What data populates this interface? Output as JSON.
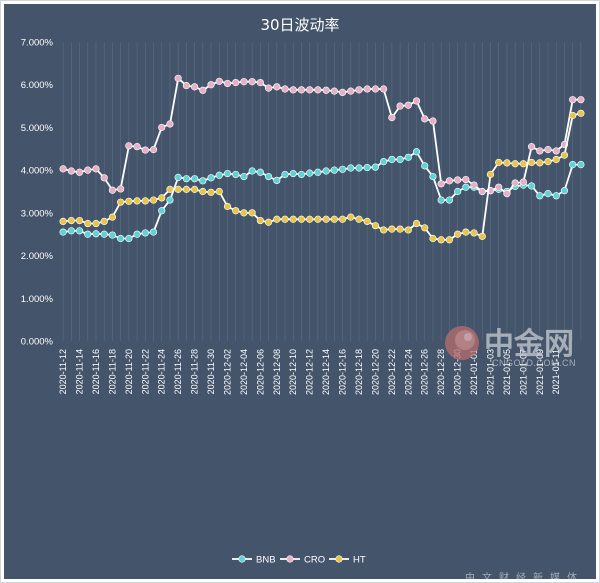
{
  "chart_data": {
    "type": "line",
    "title": "30日波动率",
    "xlabel": "",
    "ylabel": "",
    "ylim": [
      0,
      0.07
    ],
    "y_ticks": [
      "0.000%",
      "1.000%",
      "2.000%",
      "3.000%",
      "4.000%",
      "5.000%",
      "6.000%",
      "7.000%"
    ],
    "grid": "vertical-only",
    "legend": "bottom",
    "x_tick_labels": [
      "2020-11-12",
      "2020-11-14",
      "2020-11-16",
      "2020-11-18",
      "2020-11-20",
      "2020-11-22",
      "2020-11-24",
      "2020-11-26",
      "2020-11-28",
      "2020-11-30",
      "2020-12-02",
      "2020-12-04",
      "2020-12-06",
      "2020-12-08",
      "2020-12-10",
      "2020-12-12",
      "2020-12-14",
      "2020-12-16",
      "2020-12-18",
      "2020-12-20",
      "2020-12-22",
      "2020-12-24",
      "2020-12-26",
      "2020-12-28",
      "2020-12-30",
      "2021-01-01",
      "2021-01-03",
      "2021-01-05",
      "2021-01-07",
      "2021-01-09",
      "2021-01-11"
    ],
    "x_start": "2020-11-12",
    "series": [
      {
        "name": "BNB",
        "color": "#5ed3d6",
        "values": [
          0.0255,
          0.0258,
          0.0258,
          0.025,
          0.0251,
          0.025,
          0.0248,
          0.024,
          0.024,
          0.025,
          0.0253,
          0.0255,
          0.0305,
          0.033,
          0.0383,
          0.038,
          0.038,
          0.0375,
          0.0382,
          0.0388,
          0.0392,
          0.039,
          0.0385,
          0.0398,
          0.0395,
          0.0385,
          0.0376,
          0.039,
          0.0392,
          0.039,
          0.0393,
          0.0395,
          0.0398,
          0.04,
          0.0402,
          0.0405,
          0.0405,
          0.0406,
          0.0407,
          0.042,
          0.0425,
          0.0425,
          0.043,
          0.0443,
          0.041,
          0.0385,
          0.033,
          0.033,
          0.035,
          0.036,
          0.036,
          0.035,
          0.0352,
          0.0355,
          0.035,
          0.0362,
          0.0365,
          0.0363,
          0.034,
          0.0345,
          0.034,
          0.0352,
          0.0413,
          0.0413
        ]
      },
      {
        "name": "CRO",
        "color": "#e6b0c6",
        "values": [
          0.0403,
          0.0398,
          0.0395,
          0.04,
          0.0403,
          0.0382,
          0.0353,
          0.0356,
          0.0457,
          0.0455,
          0.0447,
          0.0448,
          0.05,
          0.0508,
          0.0615,
          0.0598,
          0.0595,
          0.0587,
          0.06,
          0.0608,
          0.0603,
          0.0605,
          0.0607,
          0.0607,
          0.0605,
          0.0592,
          0.0595,
          0.059,
          0.0588,
          0.0588,
          0.0588,
          0.0588,
          0.0587,
          0.0585,
          0.0582,
          0.0585,
          0.0588,
          0.059,
          0.059,
          0.059,
          0.0523,
          0.055,
          0.0552,
          0.0562,
          0.052,
          0.0515,
          0.0368,
          0.0375,
          0.0377,
          0.0378,
          0.0365,
          0.035,
          0.0352,
          0.036,
          0.0345,
          0.037,
          0.0372,
          0.0455,
          0.0445,
          0.0448,
          0.0445,
          0.046,
          0.0565,
          0.0565
        ]
      },
      {
        "name": "HT",
        "color": "#e8c547",
        "values": [
          0.028,
          0.0282,
          0.0282,
          0.0275,
          0.0275,
          0.028,
          0.029,
          0.0325,
          0.0327,
          0.0328,
          0.0328,
          0.033,
          0.0335,
          0.0355,
          0.0355,
          0.0355,
          0.0355,
          0.035,
          0.0348,
          0.035,
          0.0315,
          0.0305,
          0.03,
          0.03,
          0.0282,
          0.0278,
          0.0285,
          0.0285,
          0.0285,
          0.0285,
          0.0285,
          0.0285,
          0.0285,
          0.0285,
          0.0285,
          0.029,
          0.0285,
          0.028,
          0.027,
          0.026,
          0.0262,
          0.0262,
          0.026,
          0.0275,
          0.0265,
          0.024,
          0.0237,
          0.0237,
          0.025,
          0.0255,
          0.0253,
          0.0245,
          0.039,
          0.0418,
          0.0417,
          0.0415,
          0.0415,
          0.0418,
          0.0417,
          0.042,
          0.0425,
          0.0435,
          0.0528,
          0.0533
        ]
      }
    ]
  },
  "watermark": {
    "brand": "中金网",
    "domain": "CNGOLD.COM.CN",
    "tagline": "中文财经新媒体"
  }
}
